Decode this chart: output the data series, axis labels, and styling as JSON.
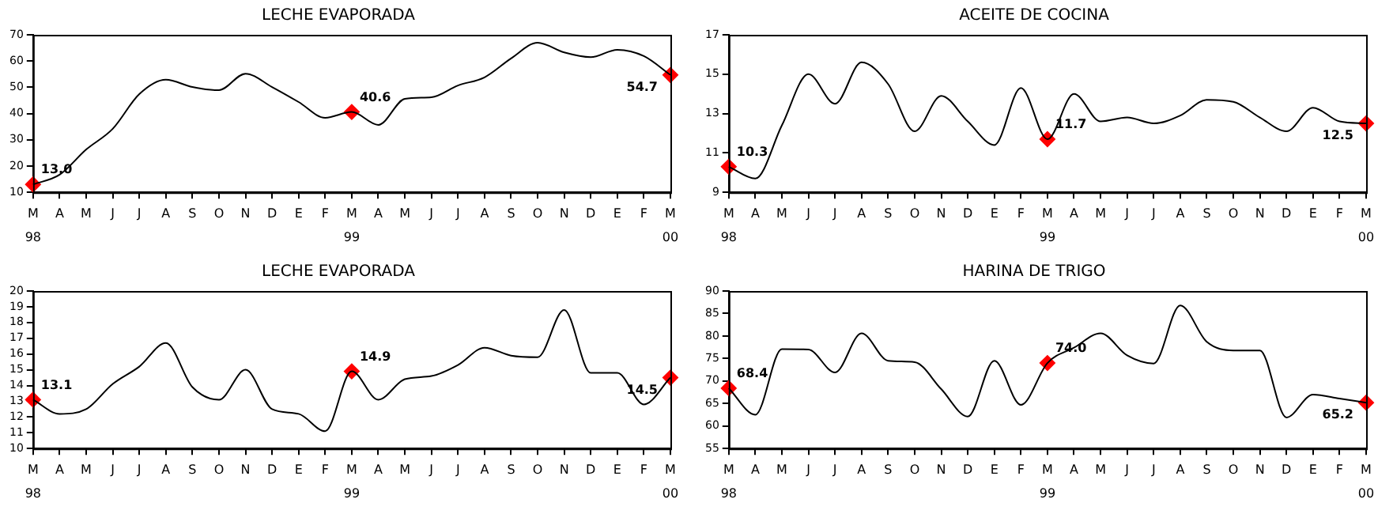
{
  "chart_data": [
    {
      "type": "line",
      "title": "LECHE EVAPORADA",
      "categories": [
        "M\n98",
        "A",
        "M",
        "J",
        "J",
        "A",
        "S",
        "O",
        "N",
        "D",
        "E",
        "F",
        "M\n99",
        "A",
        "M",
        "J",
        "J",
        "A",
        "S",
        "O",
        "N",
        "D",
        "E",
        "F",
        "M\n00"
      ],
      "ylim": [
        10,
        70
      ],
      "yticks": [
        10,
        20,
        30,
        40,
        50,
        60,
        70
      ],
      "grid": false,
      "legend": false,
      "series": [
        {
          "color": "#000000",
          "values": [
            13.0,
            16.7,
            26.3,
            34.2,
            47.4,
            52.9,
            50.1,
            48.9,
            55.2,
            50.1,
            44.4,
            38.4,
            40.6,
            35.7,
            45.6,
            46.2,
            50.7,
            53.8,
            61,
            67,
            63.3,
            61.5,
            64.3,
            61.9,
            54.7
          ]
        },
        {
          "type": "scatter",
          "marker": "diamond",
          "color": "#ff0000",
          "x": [
            "M\n98",
            "M\n99",
            "M\n00"
          ],
          "values": [
            13.0,
            40.6,
            54.7
          ],
          "value_labels": [
            "13.0",
            "40.6",
            "54.7"
          ]
        }
      ]
    },
    {
      "type": "line",
      "title": "ACEITE DE COCINA",
      "categories": [
        "M\n98",
        "A",
        "M",
        "J",
        "J",
        "A",
        "S",
        "O",
        "N",
        "D",
        "E",
        "F",
        "M\n99",
        "A",
        "M",
        "J",
        "J",
        "A",
        "S",
        "O",
        "N",
        "D",
        "E",
        "F",
        "M\n00"
      ],
      "ylim": [
        9,
        17
      ],
      "yticks": [
        9,
        11,
        13,
        15,
        17
      ],
      "grid": false,
      "legend": false,
      "series": [
        {
          "color": "#000000",
          "values": [
            10.3,
            9.7,
            12.4,
            15.0,
            13.5,
            15.6,
            14.5,
            12.1,
            13.9,
            12.6,
            11.4,
            14.3,
            11.7,
            14.0,
            12.6,
            12.8,
            12.5,
            12.9,
            13.7,
            13.6,
            12.8,
            12.1,
            13.3,
            12.6,
            12.5
          ]
        },
        {
          "type": "scatter",
          "marker": "diamond",
          "color": "#ff0000",
          "x": [
            "M\n98",
            "M\n99",
            "M\n00"
          ],
          "values": [
            10.3,
            11.7,
            12.5
          ],
          "value_labels": [
            "10.3",
            "11.7",
            "12.5"
          ]
        }
      ]
    },
    {
      "type": "line",
      "title": "LECHE EVAPORADA",
      "categories": [
        "M\n98",
        "A",
        "M",
        "J",
        "J",
        "A",
        "S",
        "O",
        "N",
        "D",
        "E",
        "F",
        "M\n99",
        "A",
        "M",
        "J",
        "J",
        "A",
        "S",
        "O",
        "N",
        "D",
        "E",
        "F",
        "M\n00"
      ],
      "ylim": [
        10,
        20
      ],
      "yticks": [
        10,
        11,
        12,
        13,
        14,
        15,
        16,
        17,
        18,
        19,
        20
      ],
      "grid": false,
      "legend": false,
      "series": [
        {
          "color": "#000000",
          "values": [
            13.1,
            12.2,
            12.5,
            14.1,
            15.2,
            16.7,
            13.9,
            13.1,
            15.0,
            12.5,
            12.2,
            11.1,
            14.9,
            13.1,
            14.4,
            14.6,
            15.3,
            16.4,
            15.9,
            15.8,
            18.8,
            14.8,
            14.8,
            12.8,
            14.5
          ]
        },
        {
          "type": "scatter",
          "marker": "diamond",
          "color": "#ff0000",
          "x": [
            "M\n98",
            "M\n99",
            "M\n00"
          ],
          "values": [
            13.1,
            14.9,
            14.5
          ],
          "value_labels": [
            "13.1",
            "14.9",
            "14.5"
          ]
        }
      ]
    },
    {
      "type": "line",
      "title": "HARINA DE TRIGO",
      "categories": [
        "M\n98",
        "A",
        "M",
        "J",
        "J",
        "A",
        "S",
        "O",
        "N",
        "D",
        "E",
        "F",
        "M\n99",
        "A",
        "M",
        "J",
        "J",
        "A",
        "S",
        "O",
        "N",
        "D",
        "E",
        "F",
        "M\n00"
      ],
      "ylim": [
        55,
        90
      ],
      "yticks": [
        55,
        60,
        65,
        70,
        75,
        80,
        85,
        90
      ],
      "grid": false,
      "legend": false,
      "series": [
        {
          "color": "#000000",
          "values": [
            68.4,
            62.5,
            77.1,
            77.0,
            71.9,
            80.6,
            74.5,
            74.2,
            68.2,
            62.1,
            74.5,
            64.7,
            74.0,
            77.4,
            80.6,
            75.7,
            73.9,
            86.8,
            78.7,
            76.8,
            76.8,
            61.9,
            67.0,
            66.1,
            65.2
          ]
        },
        {
          "type": "scatter",
          "marker": "diamond",
          "color": "#ff0000",
          "x": [
            "M\n98",
            "M\n99",
            "M\n00"
          ],
          "values": [
            68.4,
            74.0,
            65.2
          ],
          "value_labels": [
            "68.4",
            "74.0",
            "65.2"
          ]
        }
      ]
    }
  ]
}
